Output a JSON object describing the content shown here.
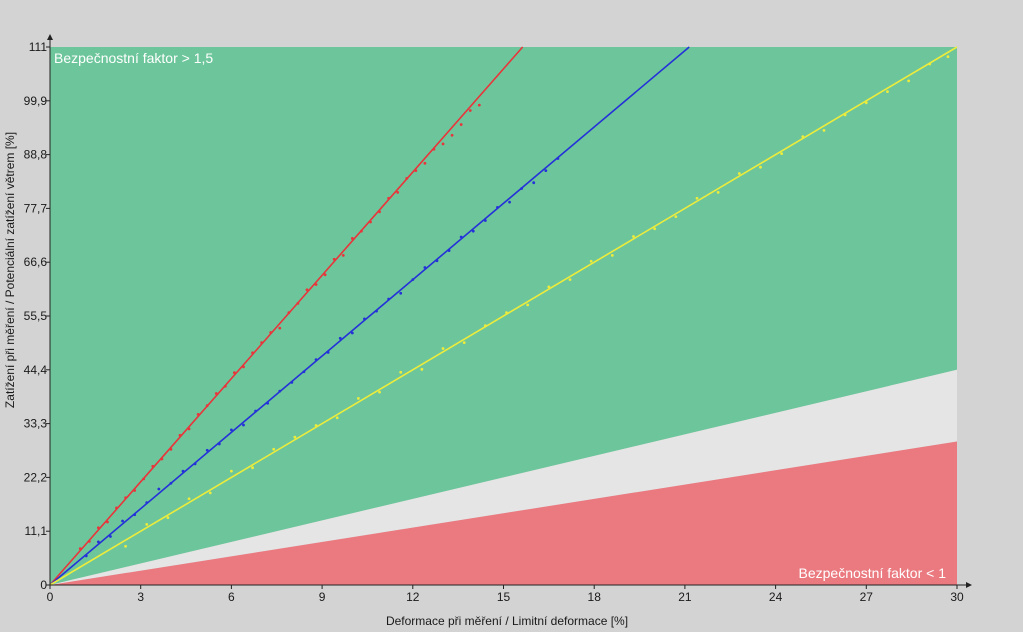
{
  "chart_data": {
    "type": "scatter",
    "title": "",
    "xlabel": "Deformace při měření / Limitní deformace [%]",
    "ylabel": "Zatížení při měření / Potenciální zatížení větrem [%]",
    "xlim": [
      0,
      30
    ],
    "ylim": [
      0,
      111
    ],
    "x_ticks": [
      "0",
      "3",
      "6",
      "9",
      "12",
      "15",
      "18",
      "21",
      "24",
      "27",
      "30"
    ],
    "y_ticks": [
      "0",
      "11,1",
      "22,2",
      "33,3",
      "44,4",
      "55,5",
      "66,6",
      "77,7",
      "88,8",
      "99,9",
      "111"
    ],
    "grid": false,
    "legend": "none",
    "zones": [
      {
        "name": "Bezpečnostní faktor > 1,5",
        "color": "#6dc69b",
        "upper_y_at_xmax": 111,
        "lower_y_at_xmax": 44.4
      },
      {
        "name": "",
        "color": "#e5e5e5",
        "upper_y_at_xmax": 44.4,
        "lower_y_at_xmax": 29.6
      },
      {
        "name": "Bezpečnostní faktor < 1",
        "color": "#ea7a80",
        "upper_y_at_xmax": 29.6,
        "lower_y_at_xmax": 0
      }
    ],
    "series": [
      {
        "color": "#e8343a",
        "fit_slope": 7.1,
        "x": [
          1.0,
          1.3,
          1.6,
          1.9,
          2.2,
          2.5,
          2.8,
          3.1,
          3.4,
          3.7,
          4.0,
          4.3,
          4.6,
          4.9,
          5.2,
          5.5,
          5.8,
          6.1,
          6.4,
          6.7,
          7.0,
          7.3,
          7.6,
          7.9,
          8.2,
          8.5,
          8.8,
          9.1,
          9.4,
          9.7,
          10.0,
          10.3,
          10.6,
          10.9,
          11.2,
          11.5,
          11.8,
          12.1,
          12.4,
          12.7,
          13.0,
          13.3,
          13.6,
          13.9,
          14.2
        ],
        "y": [
          7.5,
          9.0,
          11.8,
          13.0,
          15.9,
          18.0,
          19.5,
          21.9,
          24.5,
          26.0,
          28.0,
          30.9,
          32.2,
          35.2,
          37.0,
          39.5,
          41.0,
          43.8,
          45.0,
          47.9,
          50.0,
          52.1,
          53.0,
          56.2,
          58.1,
          60.9,
          62.0,
          64.0,
          67.2,
          68.0,
          71.5,
          73.0,
          74.9,
          77.0,
          79.8,
          81.0,
          83.9,
          85.5,
          87.0,
          89.9,
          91.0,
          92.8,
          95.0,
          97.9,
          99.0
        ]
      },
      {
        "color": "#2431d8",
        "fit_slope": 5.25,
        "x": [
          1.2,
          1.6,
          2.0,
          2.4,
          2.8,
          3.2,
          3.6,
          4.0,
          4.4,
          4.8,
          5.2,
          5.6,
          6.0,
          6.4,
          6.8,
          7.2,
          7.6,
          8.0,
          8.4,
          8.8,
          9.2,
          9.6,
          10.0,
          10.4,
          10.8,
          11.2,
          11.6,
          12.0,
          12.4,
          12.8,
          13.2,
          13.6,
          14.0,
          14.4,
          14.8,
          15.2,
          15.6,
          16.0,
          16.4,
          16.8
        ],
        "y": [
          6.0,
          8.9,
          10.0,
          13.2,
          14.5,
          17.0,
          19.8,
          21.0,
          23.5,
          25.0,
          27.8,
          29.1,
          32.0,
          33.0,
          35.9,
          37.5,
          40.0,
          41.8,
          44.0,
          46.5,
          48.0,
          50.9,
          52.0,
          54.9,
          56.5,
          59.0,
          60.2,
          63.0,
          65.5,
          66.9,
          69.0,
          71.8,
          73.0,
          75.2,
          77.9,
          79.0,
          81.8,
          83.0,
          85.5,
          88.0
        ]
      },
      {
        "color": "#ecec3c",
        "fit_slope": 3.7,
        "x": [
          2.5,
          3.2,
          3.9,
          4.6,
          5.3,
          6.0,
          6.7,
          7.4,
          8.1,
          8.8,
          9.5,
          10.2,
          10.9,
          11.6,
          12.3,
          13.0,
          13.7,
          14.4,
          15.1,
          15.8,
          16.5,
          17.2,
          17.9,
          18.6,
          19.3,
          20.0,
          20.7,
          21.4,
          22.1,
          22.8,
          23.5,
          24.2,
          24.9,
          25.6,
          26.3,
          27.0,
          27.7,
          28.4,
          29.1,
          29.7
        ],
        "y": [
          8.0,
          12.5,
          13.9,
          17.8,
          19.0,
          23.5,
          24.2,
          28.0,
          30.5,
          32.9,
          34.5,
          38.5,
          39.8,
          43.9,
          44.5,
          48.8,
          50.0,
          53.5,
          56.2,
          57.8,
          61.5,
          63.0,
          66.8,
          68.0,
          71.9,
          73.5,
          76.0,
          79.8,
          81.0,
          84.9,
          86.2,
          89.0,
          92.5,
          93.8,
          97.0,
          99.5,
          101.8,
          104.0,
          107.5,
          109.0
        ]
      }
    ]
  }
}
